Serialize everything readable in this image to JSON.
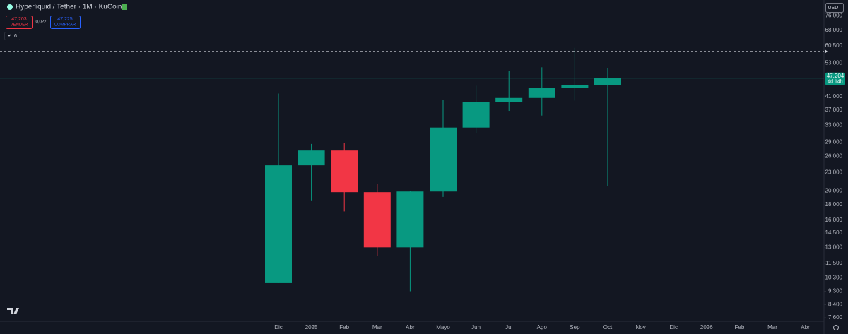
{
  "chart_data": {
    "type": "candlestick",
    "title": "Hyperliquid / Tether · 1M · KuCoin",
    "sell": {
      "price": "47,203",
      "label": "VENDER"
    },
    "spread": "0,022",
    "buy": {
      "price": "47,225",
      "label": "COMPRAR"
    },
    "indicators_count": "6",
    "currency": "USDT",
    "categories": [
      "Dic",
      "2025",
      "Feb",
      "Mar",
      "Abr",
      "Mayo",
      "Jun",
      "Jul",
      "Ago",
      "Sep",
      "Oct",
      "Nov",
      "Dic",
      "2026",
      "Feb",
      "Mar",
      "Abr"
    ],
    "open": [
      9900,
      24300,
      27200,
      19800,
      13000,
      19900,
      32400,
      39300,
      40600,
      43800,
      44700,
      null,
      null,
      null,
      null,
      null,
      null
    ],
    "high": [
      42000,
      28600,
      28800,
      21100,
      20000,
      39900,
      44600,
      49800,
      51300,
      59500,
      51000,
      null,
      null,
      null,
      null,
      null,
      null
    ],
    "low": [
      9900,
      18600,
      17100,
      12200,
      9300,
      19100,
      31000,
      36800,
      35500,
      39800,
      20800,
      null,
      null,
      null,
      null,
      null,
      null
    ],
    "close": [
      24300,
      27200,
      19800,
      13000,
      19900,
      32400,
      39300,
      40600,
      43800,
      44700,
      47204,
      null,
      null,
      null,
      null,
      null,
      null
    ],
    "up_color": "#089981",
    "down_color": "#f23645",
    "last_price": {
      "value": 47204,
      "label": "47,204",
      "countdown": "4d 14h"
    },
    "alert_level": 57900,
    "log_scale": true,
    "ylim": [
      7400,
      85700
    ],
    "yticks": [
      {
        "value": 76000,
        "label": "76,000"
      },
      {
        "value": 68000,
        "label": "68,000"
      },
      {
        "value": 60500,
        "label": "60,500"
      },
      {
        "value": 53000,
        "label": "53,000"
      },
      {
        "value": 41000,
        "label": "41,000"
      },
      {
        "value": 37000,
        "label": "37,000"
      },
      {
        "value": 33000,
        "label": "33,000"
      },
      {
        "value": 29000,
        "label": "29,000"
      },
      {
        "value": 26000,
        "label": "26,000"
      },
      {
        "value": 23000,
        "label": "23,000"
      },
      {
        "value": 20000,
        "label": "20,000"
      },
      {
        "value": 18000,
        "label": "18,000"
      },
      {
        "value": 16000,
        "label": "16,000"
      },
      {
        "value": 14500,
        "label": "14,500"
      },
      {
        "value": 13000,
        "label": "13,000"
      },
      {
        "value": 11500,
        "label": "11,500"
      },
      {
        "value": 10300,
        "label": "10,300"
      },
      {
        "value": 9300,
        "label": "9,300"
      },
      {
        "value": 8400,
        "label": "8,400"
      },
      {
        "value": 7600,
        "label": "7,600"
      }
    ]
  }
}
